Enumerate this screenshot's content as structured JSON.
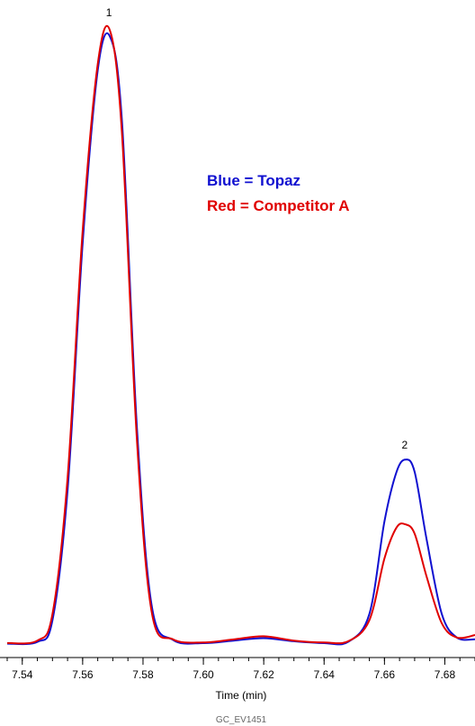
{
  "chart_data": {
    "type": "line",
    "xlabel": "Time (min)",
    "ylabel": "",
    "xlim": [
      7.535,
      7.69
    ],
    "ylim": [
      0,
      100
    ],
    "x_ticks": [
      "7.54",
      "7.56",
      "7.58",
      "7.60",
      "7.62",
      "7.64",
      "7.66",
      "7.68"
    ],
    "grid": false,
    "legend_position": "top-right",
    "legend": [
      {
        "text": "Blue = Topaz",
        "color": "#1010d0"
      },
      {
        "text": "Red = Competitor A",
        "color": "#e00000"
      }
    ],
    "peak_labels": [
      {
        "label": "1",
        "x": 7.569,
        "y": 100
      },
      {
        "label": "2",
        "x": 7.667,
        "y": 30
      }
    ],
    "series": [
      {
        "color": "#1010d0",
        "x": [
          7.535,
          7.545,
          7.55,
          7.555,
          7.56,
          7.565,
          7.569,
          7.573,
          7.578,
          7.583,
          7.59,
          7.6,
          7.61,
          7.62,
          7.63,
          7.64,
          7.648,
          7.655,
          7.66,
          7.664,
          7.667,
          7.67,
          7.674,
          7.679,
          7.684,
          7.69
        ],
        "values": [
          0.2,
          0.5,
          4,
          25,
          65,
          93,
          98.5,
          85,
          35,
          6,
          0.8,
          0.3,
          0.7,
          1.1,
          0.6,
          0.3,
          0.5,
          5,
          20,
          28,
          30,
          28,
          17,
          5,
          1.2,
          0.9
        ]
      },
      {
        "color": "#e00000",
        "x": [
          7.535,
          7.545,
          7.55,
          7.555,
          7.56,
          7.565,
          7.569,
          7.573,
          7.578,
          7.583,
          7.59,
          7.6,
          7.61,
          7.62,
          7.63,
          7.64,
          7.648,
          7.655,
          7.66,
          7.664,
          7.667,
          7.67,
          7.674,
          7.679,
          7.684,
          7.69
        ],
        "values": [
          0.3,
          0.7,
          5,
          27,
          67,
          94,
          99.5,
          83,
          33,
          5,
          0.9,
          0.4,
          0.9,
          1.4,
          0.7,
          0.4,
          0.6,
          4,
          14,
          19,
          19.5,
          18,
          11,
          3.5,
          1.2,
          1.6
        ]
      }
    ]
  },
  "footer": "GC_EV1451"
}
